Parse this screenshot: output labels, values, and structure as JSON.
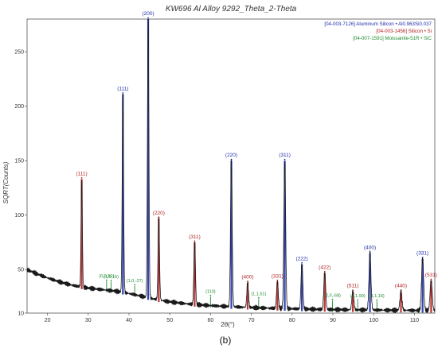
{
  "chart_data": {
    "type": "line",
    "title": "KW696 Al Alloy 9292_Theta_2-Theta",
    "xlabel": "2θ(°)",
    "ylabel": "SQRT(Counts)",
    "xlim": [
      15,
      115
    ],
    "ylim": [
      10,
      280
    ],
    "xticks": [
      20,
      30,
      40,
      50,
      60,
      70,
      80,
      90,
      100,
      110
    ],
    "yticks": [
      10,
      50,
      100,
      150,
      200,
      250
    ],
    "grid": false,
    "legend_position": "top-right",
    "caption": "(b)",
    "colors": {
      "measured": "#1a1a1a",
      "al": "#1f2fa8",
      "si": "#b22222",
      "sic": "#1e8c2e"
    },
    "legend": [
      {
        "text": "[04-003-7126] Aluminum Silicon • Al0.963Si0.037",
        "color": "#1f2fa8"
      },
      {
        "text": "[04-003-1456] Silicon • Si",
        "color": "#b22222"
      },
      {
        "text": "[04-007-1591] Moissanite-51R • SiC",
        "color": "#1e8c2e"
      }
    ],
    "measured_peaks": [
      {
        "x": 28.4,
        "y": 133
      },
      {
        "x": 38.5,
        "y": 211
      },
      {
        "x": 44.7,
        "y": 280
      },
      {
        "x": 47.3,
        "y": 97
      },
      {
        "x": 56.1,
        "y": 75
      },
      {
        "x": 65.1,
        "y": 150
      },
      {
        "x": 69.1,
        "y": 38
      },
      {
        "x": 76.4,
        "y": 39
      },
      {
        "x": 78.2,
        "y": 150
      },
      {
        "x": 82.4,
        "y": 55
      },
      {
        "x": 88.0,
        "y": 47
      },
      {
        "x": 94.9,
        "y": 30
      },
      {
        "x": 99.1,
        "y": 65
      },
      {
        "x": 106.7,
        "y": 30
      },
      {
        "x": 112.0,
        "y": 60
      },
      {
        "x": 114.1,
        "y": 40
      }
    ],
    "reference_series": [
      {
        "phase": "al",
        "peaks": [
          {
            "x": 38.5,
            "label": "(111)"
          },
          {
            "x": 44.7,
            "label": "(200)"
          },
          {
            "x": 65.1,
            "label": "(220)"
          },
          {
            "x": 78.2,
            "label": "(311)"
          },
          {
            "x": 82.4,
            "label": "(222)"
          },
          {
            "x": 99.1,
            "label": "(400)"
          },
          {
            "x": 112.0,
            "label": "(331)"
          }
        ]
      },
      {
        "phase": "si",
        "peaks": [
          {
            "x": 28.4,
            "label": "(111)"
          },
          {
            "x": 47.3,
            "label": "(220)"
          },
          {
            "x": 56.1,
            "label": "(311)"
          },
          {
            "x": 69.1,
            "label": "(400)"
          },
          {
            "x": 76.4,
            "label": "(331)"
          },
          {
            "x": 88.0,
            "label": "(422)"
          },
          {
            "x": 94.9,
            "label": "(511)"
          },
          {
            "x": 106.7,
            "label": "(440)"
          },
          {
            "x": 114.1,
            "label": "(531)"
          }
        ]
      },
      {
        "phase": "sic",
        "peaks": [
          {
            "x": 34.5,
            "label": "(0,0,51)"
          },
          {
            "x": 35.6,
            "label": "(1,0,16)"
          },
          {
            "x": 41.4,
            "label": "(1,0,-27)"
          },
          {
            "x": 60.0,
            "label": "(110)"
          },
          {
            "x": 71.8,
            "label": "(1,1,51)"
          },
          {
            "x": 89.9,
            "label": "(2,0,-68)"
          },
          {
            "x": 96.1,
            "label": "(1,1,90)"
          },
          {
            "x": 100.8,
            "label": "(1,1,16)"
          }
        ]
      }
    ]
  }
}
